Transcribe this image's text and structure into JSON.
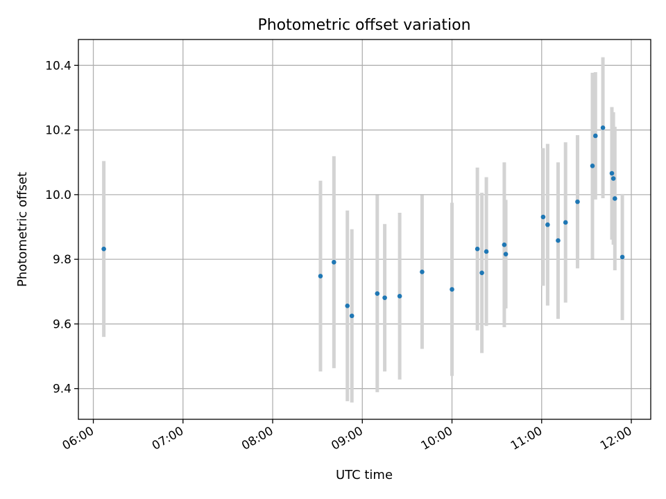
{
  "chart_data": {
    "type": "scatter",
    "title": "Photometric offset variation",
    "xlabel": "UTC time",
    "ylabel": "Photometric offset",
    "x_ticks": [
      "06:00",
      "07:00",
      "08:00",
      "09:00",
      "10:00",
      "11:00",
      "12:00"
    ],
    "y_ticks": [
      "9.4",
      "9.6",
      "9.8",
      "10.0",
      "10.2",
      "10.4"
    ],
    "xlim": [
      "05:50",
      "12:13"
    ],
    "ylim": [
      9.305,
      10.48
    ],
    "grid": true,
    "marker_color": "#1f77b4",
    "errorbar_color": "#d3d3d3",
    "points": [
      {
        "x": "06:07",
        "y": 9.832,
        "err": 0.272
      },
      {
        "x": "08:32",
        "y": 9.748,
        "err": 0.295
      },
      {
        "x": "08:41",
        "y": 9.791,
        "err": 0.328
      },
      {
        "x": "08:50",
        "y": 9.656,
        "err": 0.295
      },
      {
        "x": "08:53",
        "y": 9.625,
        "err": 0.268
      },
      {
        "x": "09:10",
        "y": 9.694,
        "err": 0.305
      },
      {
        "x": "09:15",
        "y": 9.681,
        "err": 0.228
      },
      {
        "x": "09:25",
        "y": 9.686,
        "err": 0.258
      },
      {
        "x": "09:40",
        "y": 9.761,
        "err": 0.238
      },
      {
        "x": "10:00",
        "y": 9.707,
        "err": 0.268
      },
      {
        "x": "10:17",
        "y": 9.832,
        "err": 0.252
      },
      {
        "x": "10:20",
        "y": 9.758,
        "err": 0.248
      },
      {
        "x": "10:23",
        "y": 9.824,
        "err": 0.23
      },
      {
        "x": "10:35",
        "y": 9.845,
        "err": 0.255
      },
      {
        "x": "10:36",
        "y": 9.816,
        "err": 0.168
      },
      {
        "x": "11:01",
        "y": 9.931,
        "err": 0.213
      },
      {
        "x": "11:04",
        "y": 9.907,
        "err": 0.25
      },
      {
        "x": "11:11",
        "y": 9.858,
        "err": 0.242
      },
      {
        "x": "11:16",
        "y": 9.914,
        "err": 0.248
      },
      {
        "x": "11:24",
        "y": 9.978,
        "err": 0.206
      },
      {
        "x": "11:34",
        "y": 10.089,
        "err": 0.288
      },
      {
        "x": "11:36",
        "y": 10.182,
        "err": 0.197
      },
      {
        "x": "11:41",
        "y": 10.207,
        "err": 0.218
      },
      {
        "x": "11:47",
        "y": 10.066,
        "err": 0.205
      },
      {
        "x": "11:48",
        "y": 10.05,
        "err": 0.205
      },
      {
        "x": "11:49",
        "y": 9.988,
        "err": 0.222
      },
      {
        "x": "11:54",
        "y": 9.807,
        "err": 0.195
      }
    ]
  }
}
